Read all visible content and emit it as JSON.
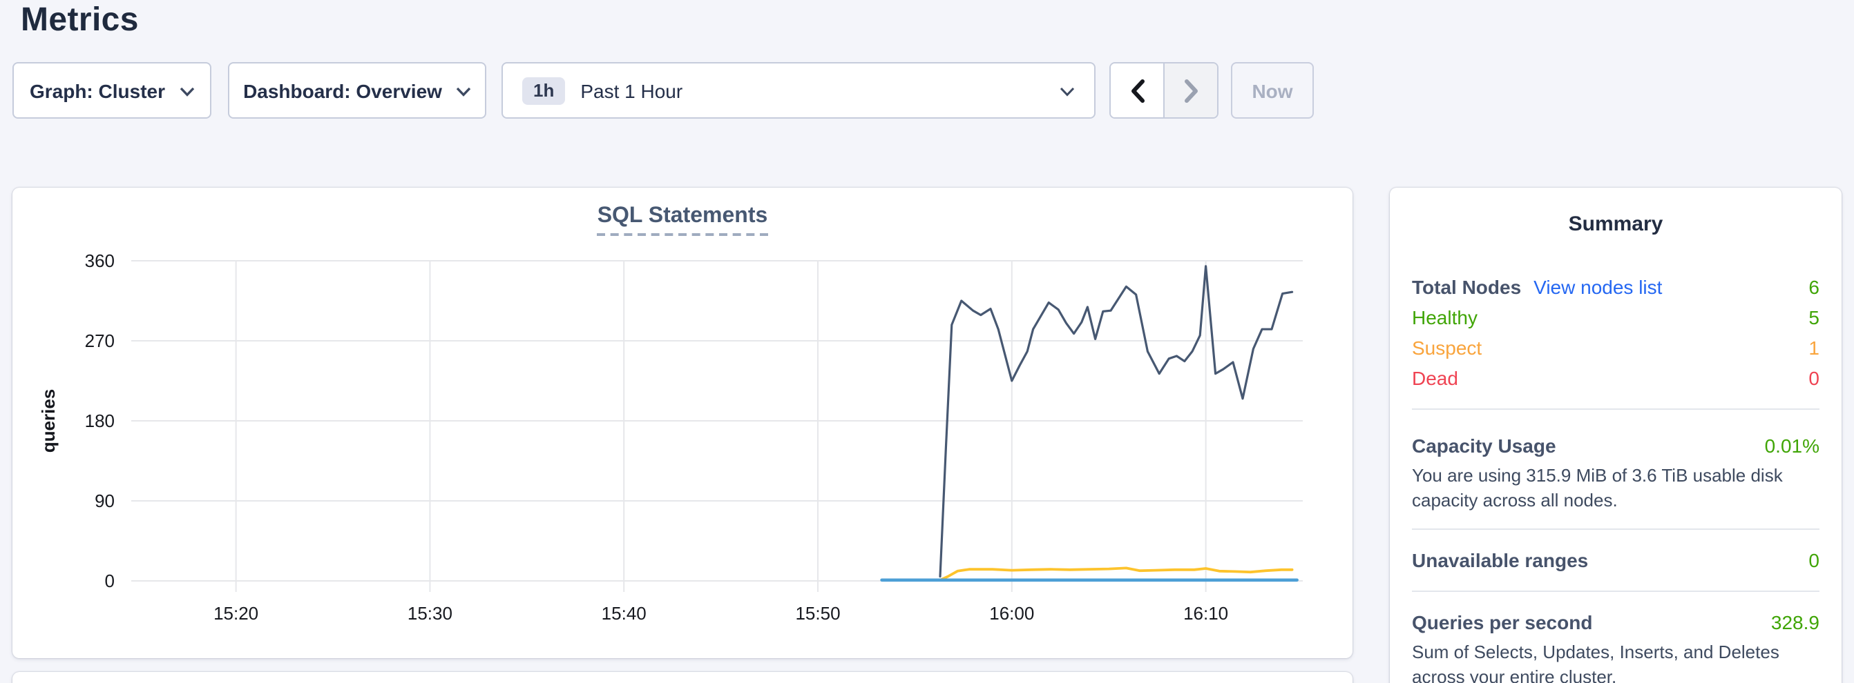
{
  "page": {
    "title": "Metrics"
  },
  "toolbar": {
    "graph_dropdown": "Graph: Cluster",
    "dashboard_dropdown": "Dashboard: Overview",
    "time_badge": "1h",
    "time_label": "Past 1 Hour",
    "now_button": "Now"
  },
  "chart_data": {
    "type": "line",
    "title": "SQL Statements",
    "ylabel": "queries",
    "ylim": [
      0,
      360
    ],
    "y_ticks": [
      0,
      90,
      180,
      270,
      360
    ],
    "xlim_minutes": [
      14.6,
      75.0
    ],
    "x_ticks": [
      {
        "minute": 20,
        "label": "15:20"
      },
      {
        "minute": 30,
        "label": "15:30"
      },
      {
        "minute": 40,
        "label": "15:40"
      },
      {
        "minute": 50,
        "label": "15:50"
      },
      {
        "minute": 60,
        "label": "16:00"
      },
      {
        "minute": 70,
        "label": "16:10"
      }
    ],
    "grid": true,
    "legend": "none",
    "series": [
      {
        "name": "series-dark-slate",
        "color": "#475872",
        "points": [
          [
            56.3,
            5
          ],
          [
            56.6,
            150
          ],
          [
            56.9,
            288
          ],
          [
            57.4,
            315
          ],
          [
            58.0,
            304
          ],
          [
            58.4,
            299
          ],
          [
            58.9,
            306
          ],
          [
            59.3,
            283
          ],
          [
            60.0,
            225
          ],
          [
            60.4,
            242
          ],
          [
            60.8,
            258
          ],
          [
            61.1,
            283
          ],
          [
            61.9,
            313
          ],
          [
            62.4,
            305
          ],
          [
            62.8,
            290
          ],
          [
            63.2,
            278
          ],
          [
            63.6,
            291
          ],
          [
            63.9,
            308
          ],
          [
            64.3,
            272
          ],
          [
            64.7,
            303
          ],
          [
            65.1,
            304
          ],
          [
            65.9,
            331
          ],
          [
            66.4,
            322
          ],
          [
            67.0,
            258
          ],
          [
            67.6,
            233
          ],
          [
            68.1,
            250
          ],
          [
            68.5,
            253
          ],
          [
            68.9,
            247
          ],
          [
            69.3,
            258
          ],
          [
            69.7,
            276
          ],
          [
            70.0,
            354
          ],
          [
            70.5,
            233
          ],
          [
            70.9,
            238
          ],
          [
            71.4,
            246
          ],
          [
            71.9,
            205
          ],
          [
            72.45,
            261
          ],
          [
            72.9,
            283
          ],
          [
            73.4,
            283
          ],
          [
            73.95,
            323
          ],
          [
            74.45,
            325
          ]
        ]
      },
      {
        "name": "series-yellow",
        "color": "#fdc32c",
        "points": [
          [
            56.3,
            1
          ],
          [
            56.7,
            5
          ],
          [
            57.2,
            11
          ],
          [
            57.8,
            13
          ],
          [
            59.0,
            13
          ],
          [
            60.0,
            12
          ],
          [
            61.0,
            12.5
          ],
          [
            62.0,
            13
          ],
          [
            63.0,
            12.5
          ],
          [
            64.0,
            13
          ],
          [
            65.0,
            13.5
          ],
          [
            65.9,
            14.5
          ],
          [
            66.6,
            11.5
          ],
          [
            67.4,
            12
          ],
          [
            68.4,
            12.5
          ],
          [
            69.4,
            12.5
          ],
          [
            70.0,
            14
          ],
          [
            70.7,
            11
          ],
          [
            71.5,
            10.5
          ],
          [
            72.3,
            10
          ],
          [
            73.1,
            11.5
          ],
          [
            73.9,
            12.5
          ],
          [
            74.45,
            12.5
          ]
        ]
      },
      {
        "name": "series-blue",
        "color": "#4c9fd6",
        "points": [
          [
            53.3,
            1
          ],
          [
            74.7,
            1
          ]
        ]
      }
    ]
  },
  "summary": {
    "title": "Summary",
    "total_nodes_label": "Total Nodes",
    "view_nodes_link": "View nodes list",
    "total_nodes_value": "6",
    "rows": [
      {
        "label": "Healthy",
        "value": "5",
        "status": "green"
      },
      {
        "label": "Suspect",
        "value": "1",
        "status": "orange"
      },
      {
        "label": "Dead",
        "value": "0",
        "status": "red"
      }
    ],
    "capacity": {
      "label": "Capacity Usage",
      "value": "0.01%",
      "desc": "You are using 315.9 MiB of 3.6 TiB usable disk capacity across all nodes."
    },
    "unavailable": {
      "label": "Unavailable ranges",
      "value": "0"
    },
    "qps": {
      "label": "Queries per second",
      "value": "328.9",
      "desc": "Sum of Selects, Updates, Inserts, and Deletes across your entire cluster."
    }
  },
  "colors": {
    "page_background": "#f4f5fa",
    "panel_background": "#ffffff",
    "status_green": "#40a506",
    "status_orange": "#f9a43c",
    "status_red": "#ef4352",
    "link_blue": "#2467f2",
    "heading_navy": "#232d42",
    "gridline": "#e6e7ea"
  }
}
